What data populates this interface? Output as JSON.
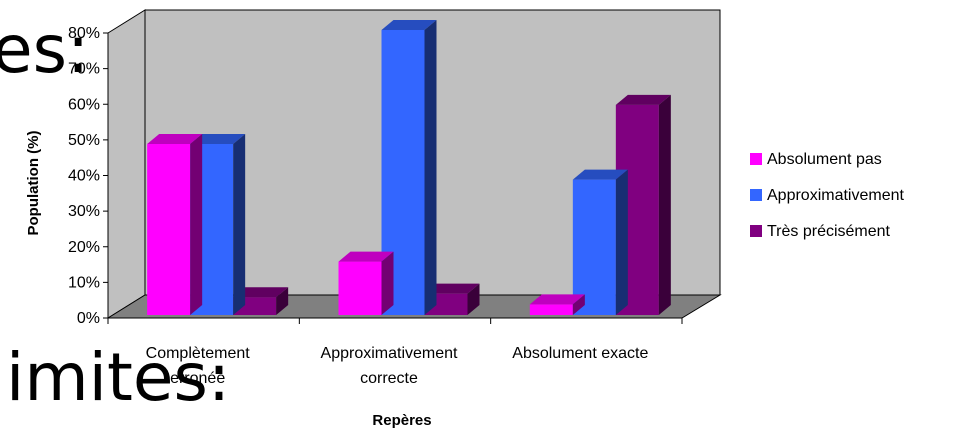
{
  "background_text": [
    "es:",
    "imites:"
  ],
  "chart_data": {
    "type": "bar",
    "title": "",
    "xlabel": "Repères",
    "ylabel": "Population (%)",
    "ylim": [
      0,
      80
    ],
    "yticks": [
      "0%",
      "10%",
      "20%",
      "30%",
      "40%",
      "50%",
      "60%",
      "70%",
      "80%"
    ],
    "categories": [
      [
        "Complètement",
        "erronée"
      ],
      [
        "Approximativement",
        "correcte"
      ],
      [
        "Absolument exacte"
      ]
    ],
    "series": [
      {
        "name": "Absolument pas",
        "values": [
          48,
          15,
          3
        ],
        "color": "#ff00ff"
      },
      {
        "name": "Approximativement",
        "values": [
          48,
          80,
          38
        ],
        "color": "#3366ff"
      },
      {
        "name": "Très précisément",
        "values": [
          5,
          6,
          59
        ],
        "color": "#800080"
      }
    ],
    "grid": false,
    "legend_position": "right",
    "style": "3d-clustered"
  }
}
